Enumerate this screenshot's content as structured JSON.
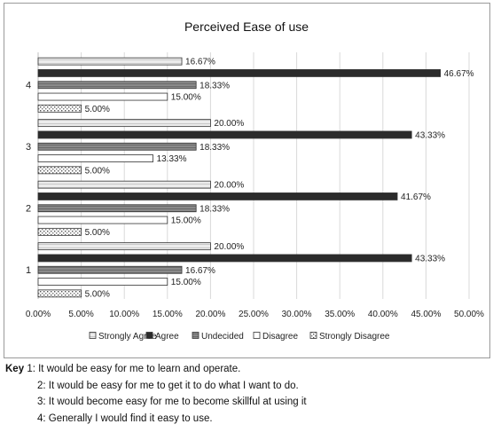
{
  "chart_data": {
    "type": "bar",
    "orientation": "horizontal",
    "title": "Perceived Ease of use",
    "categories": [
      "1",
      "2",
      "3",
      "4"
    ],
    "series": [
      {
        "name": "Strongly Agree",
        "values": [
          20.0,
          20.0,
          20.0,
          16.67
        ],
        "labels": [
          "20.00%",
          "20.00%",
          "20.00%",
          "16.67%"
        ]
      },
      {
        "name": "Agree",
        "values": [
          43.33,
          41.67,
          43.33,
          46.67
        ],
        "labels": [
          "43.33%",
          "41.67%",
          "43.33%",
          "46.67%"
        ]
      },
      {
        "name": "Undecided",
        "values": [
          16.67,
          18.33,
          18.33,
          18.33
        ],
        "labels": [
          "16.67%",
          "18.33%",
          "18.33%",
          "18.33%"
        ]
      },
      {
        "name": "Disagree",
        "values": [
          15.0,
          15.0,
          13.33,
          15.0
        ],
        "labels": [
          "15.00%",
          "15.00%",
          "13.33%",
          "15.00%"
        ]
      },
      {
        "name": "Strongly Disagree",
        "values": [
          5.0,
          5.0,
          5.0,
          5.0
        ],
        "labels": [
          "5.00%",
          "5.00%",
          "5.00%",
          "5.00%"
        ]
      }
    ],
    "xlim": [
      0,
      50
    ],
    "x_ticks": [
      "0.00%",
      "5.00%",
      "10.00%",
      "15.00%",
      "20.00%",
      "25.00%",
      "30.00%",
      "35.00%",
      "40.00%",
      "45.00%",
      "50.00%"
    ],
    "grid": true,
    "legend_position": "bottom"
  },
  "key": {
    "heading": "Key",
    "items": [
      {
        "num": "1",
        "text": ": It would be easy for me to learn and operate."
      },
      {
        "num": "2",
        "text": ": It would be easy for me to get it to do what I want to do."
      },
      {
        "num": "3",
        "text": ": It would become easy for me to become skillful at using it"
      },
      {
        "num": "4",
        "text": ": Generally I would find it easy to use."
      }
    ]
  },
  "colors": {
    "strongly_agree": "#e6e6e6",
    "agree": "#2b2b2b",
    "undecided": "#8c8c8c",
    "disagree": "#ffffff",
    "strongly_disagree": "#bdbdbd",
    "grid": "#d9d9d9"
  }
}
